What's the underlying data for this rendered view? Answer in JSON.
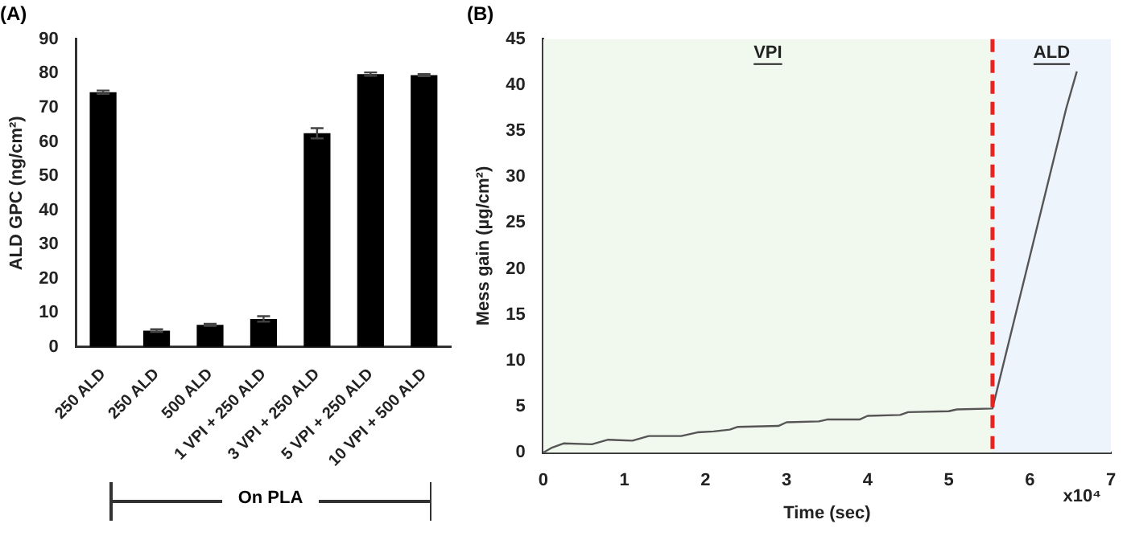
{
  "chart_data": [
    {
      "type": "bar",
      "title": "(A)",
      "ylabel": "ALD GPC (ng/cm²)",
      "categories": [
        "250 ALD",
        "250 ALD",
        "500 ALD",
        "1 VPI + 250 ALD",
        "3 VPI + 250 ALD",
        "5 VPI + 250 ALD",
        "10 VPI + 500 ALD"
      ],
      "values": [
        74.5,
        4.8,
        6.5,
        8.2,
        62.5,
        79.8,
        79.5
      ],
      "errors": [
        0.5,
        0.4,
        0.3,
        0.8,
        1.5,
        0.5,
        0.3
      ],
      "color": "#000000",
      "ylim": [
        0,
        90
      ],
      "yticks": [
        0,
        10,
        20,
        30,
        40,
        50,
        60,
        70,
        80,
        90
      ],
      "grid": false,
      "legend": false,
      "annotations": [
        "On PLA"
      ]
    },
    {
      "type": "line",
      "title": "(B)",
      "xlabel": "Time (sec)",
      "ylabel": "Mess gain (µg/cm²)",
      "x": [
        0,
        0.1,
        0.25,
        0.6,
        0.8,
        1.1,
        1.3,
        1.7,
        1.9,
        2.1,
        2.3,
        2.4,
        2.9,
        3.0,
        3.4,
        3.5,
        3.9,
        4.0,
        4.4,
        4.5,
        5.0,
        5.1,
        5.54,
        6.45,
        6.58
      ],
      "values": [
        0,
        0.5,
        1.0,
        0.9,
        1.4,
        1.3,
        1.8,
        1.8,
        2.2,
        2.3,
        2.5,
        2.8,
        2.9,
        3.3,
        3.4,
        3.6,
        3.6,
        4.0,
        4.1,
        4.4,
        4.5,
        4.7,
        4.8,
        37.5,
        41.5
      ],
      "color": "#555555",
      "xlim": [
        0,
        7
      ],
      "xticks": [
        0,
        1,
        2,
        3,
        4,
        5,
        6,
        7
      ],
      "ylim": [
        0,
        45
      ],
      "yticks": [
        0,
        5,
        10,
        15,
        20,
        25,
        30,
        35,
        40,
        45
      ],
      "grid": false,
      "legend": false,
      "marker": "none",
      "line_style": "solid",
      "bands": [
        {
          "axis": "x",
          "from": 0,
          "to": 5.54,
          "label": "VPI",
          "color": "#f1f8ee"
        },
        {
          "axis": "x",
          "from": 5.54,
          "to": 7,
          "label": "ALD",
          "color": "#eef4fb"
        }
      ],
      "ref_lines": [
        {
          "axis": "x",
          "value": 5.54,
          "color": "#e8231f",
          "line_style": "dashed"
        }
      ],
      "annotations": [
        "x10⁴"
      ]
    }
  ]
}
